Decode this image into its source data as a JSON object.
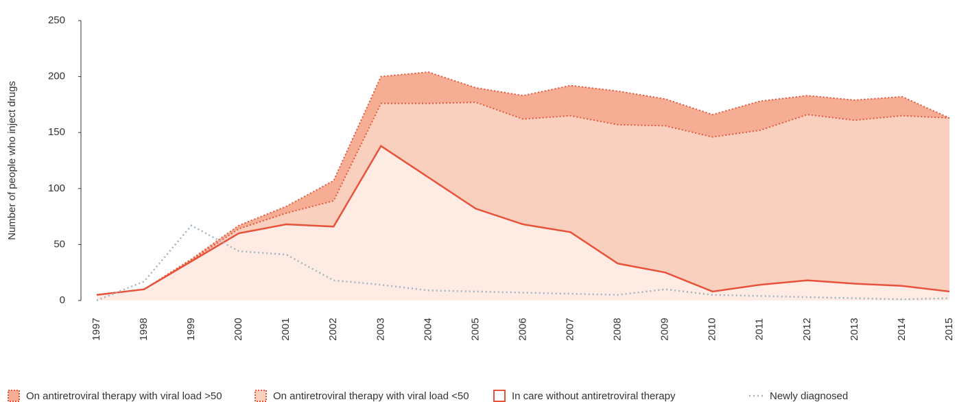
{
  "chart_data": {
    "type": "stacked_area",
    "y_label": "Number of people who inject drugs",
    "categories": [
      "1997",
      "1998",
      "1999",
      "2000",
      "2001",
      "2002",
      "2003",
      "2004",
      "2005",
      "2006",
      "2007",
      "2008",
      "2009",
      "2010",
      "2011",
      "2012",
      "2013",
      "2014",
      "2015"
    ],
    "series": [
      {
        "name": "In care without antiretroviral therapy",
        "color": "#e8523a",
        "fill": "#fdebe4",
        "values": [
          5,
          10,
          35,
          60,
          68,
          66,
          138,
          110,
          82,
          68,
          61,
          33,
          25,
          8,
          14,
          18,
          15,
          13,
          8
        ]
      },
      {
        "name": "On antiretroviral therapy with viral load <50",
        "color": "#e8523a",
        "fill": "#f9d0be",
        "values": [
          0,
          0,
          1,
          4,
          10,
          23,
          38,
          66,
          95,
          94,
          104,
          124,
          131,
          138,
          138,
          148,
          146,
          152,
          155
        ]
      },
      {
        "name": "On antiretroviral therapy with viral load >50",
        "color": "#e8523a",
        "fill": "#f5ae94",
        "values": [
          0,
          0,
          1,
          3,
          6,
          18,
          24,
          28,
          13,
          21,
          27,
          30,
          24,
          20,
          26,
          17,
          18,
          17,
          0
        ]
      }
    ],
    "line_series": {
      "name": "Newly diagnosed",
      "color": "#9fb3c0",
      "values": [
        0,
        17,
        67,
        44,
        41,
        18,
        14,
        9,
        8,
        7,
        6,
        5,
        10,
        5,
        4,
        3,
        2,
        1,
        2
      ]
    },
    "ylim": [
      0,
      250
    ],
    "yticks": [
      0,
      50,
      100,
      150,
      200,
      250
    ]
  }
}
